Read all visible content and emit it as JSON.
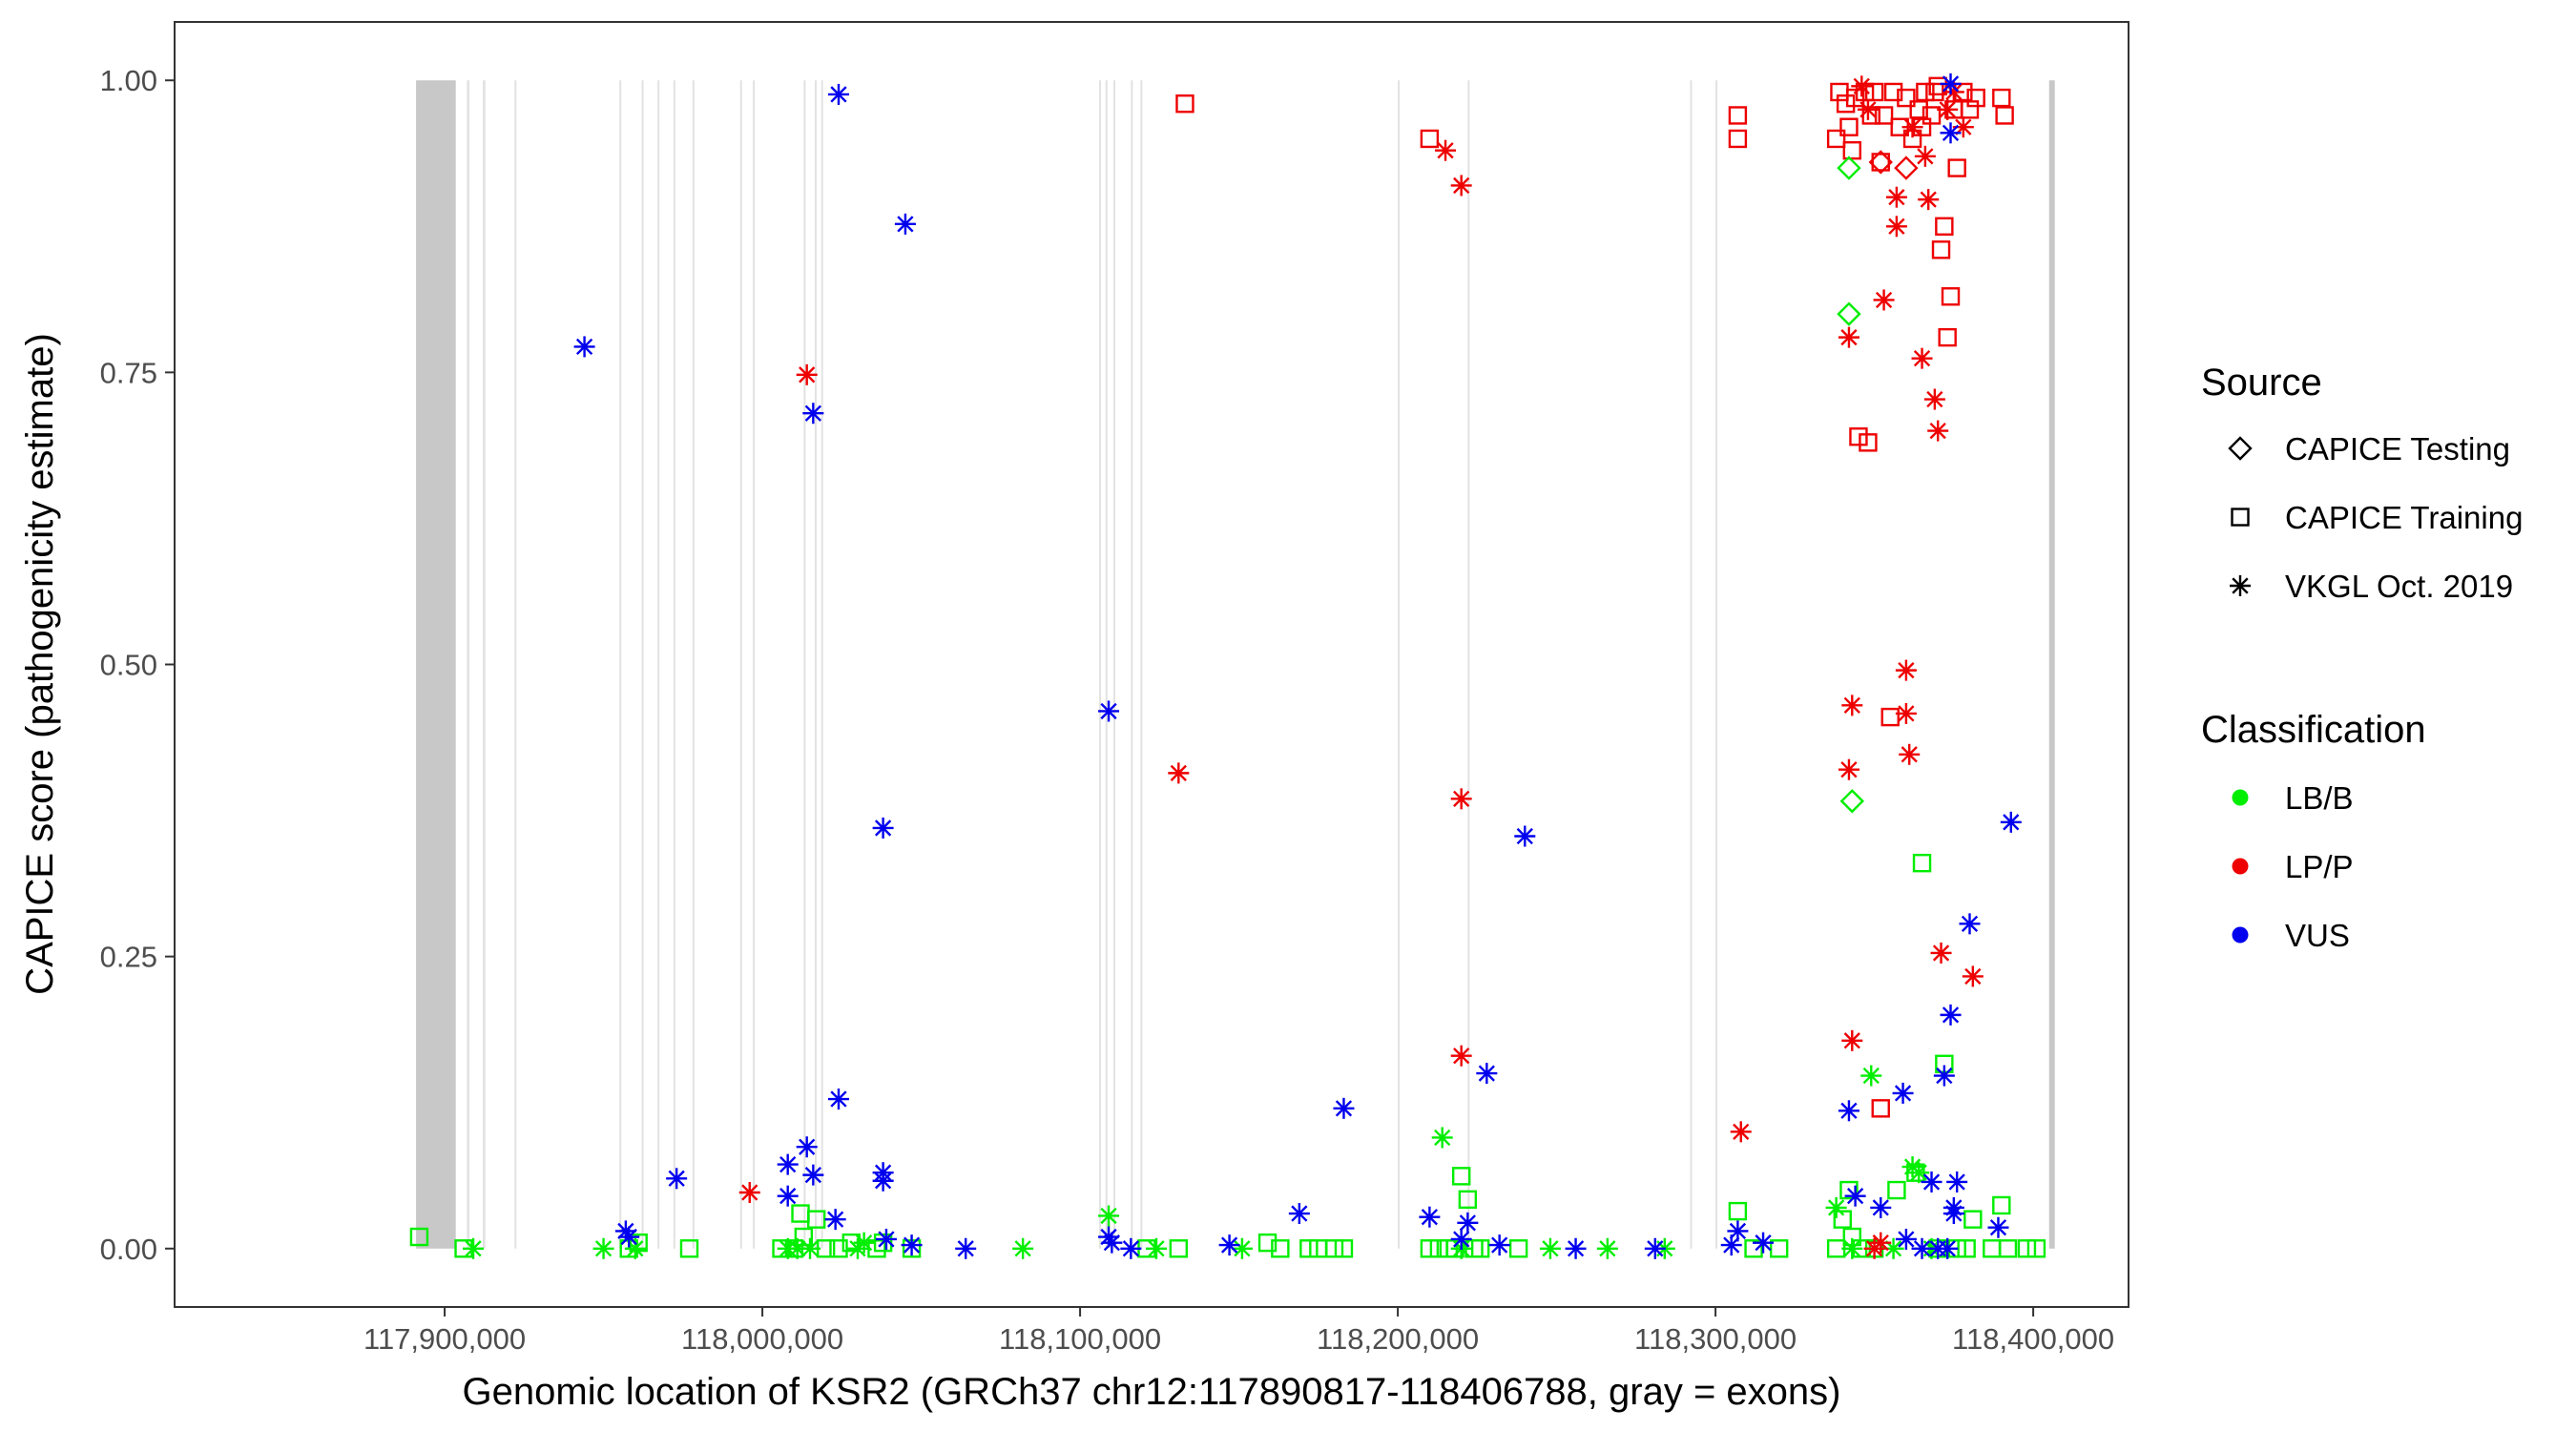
{
  "chart_data": {
    "type": "scatter",
    "title": "",
    "xlabel": "Genomic location of KSR2 (GRCh37 chr12:117890817-118406788, gray = exons)",
    "ylabel": "CAPICE score (pathogenicity estimate)",
    "xlim": [
      117815000,
      118430000
    ],
    "ylim": [
      -0.05,
      1.05
    ],
    "x_ticks": [
      117900000,
      118000000,
      118100000,
      118200000,
      118300000,
      118400000
    ],
    "x_tick_labels": [
      "117,900,000",
      "118,000,000",
      "118,100,000",
      "118,200,000",
      "118,300,000",
      "118,400,000"
    ],
    "y_ticks": [
      0,
      0.25,
      0.5,
      0.75,
      1
    ],
    "y_tick_labels": [
      "0.00",
      "0.25",
      "0.50",
      "0.75",
      "1.00"
    ],
    "exons": [
      [
        117891000,
        117903500
      ],
      [
        117907000,
        117907800
      ],
      [
        117912000,
        117912800
      ],
      [
        117922000,
        117922600
      ],
      [
        117955000,
        117955600
      ],
      [
        117962000,
        117962600
      ],
      [
        117967000,
        117967600
      ],
      [
        117972000,
        117972600
      ],
      [
        117978000,
        117978600
      ],
      [
        117993000,
        117993600
      ],
      [
        117997000,
        117997600
      ],
      [
        118013000,
        118013600
      ],
      [
        118016500,
        118017100
      ],
      [
        118018500,
        118019100
      ],
      [
        118106000,
        118106600
      ],
      [
        118108000,
        118108600
      ],
      [
        118110500,
        118111100
      ],
      [
        118116000,
        118116600
      ],
      [
        118119000,
        118119600
      ],
      [
        118200000,
        118200600
      ],
      [
        118222000,
        118222600
      ],
      [
        118292000,
        118292600
      ],
      [
        118300000,
        118300600
      ],
      [
        118405000,
        118406788
      ]
    ],
    "legends": {
      "source": {
        "title": "Source",
        "items": [
          {
            "shape": "diamond",
            "label": "CAPICE Testing"
          },
          {
            "shape": "square",
            "label": "CAPICE Training"
          },
          {
            "shape": "asterisk",
            "label": "VKGL Oct. 2019"
          }
        ]
      },
      "classification": {
        "title": "Classification",
        "items": [
          {
            "key": "LB",
            "label": "LB/B",
            "color": "#00ee00"
          },
          {
            "key": "LP",
            "label": "LP/P",
            "color": "#ee0000"
          },
          {
            "key": "VUS",
            "label": "VUS",
            "color": "#0000ee"
          }
        ]
      }
    },
    "series": [
      {
        "name": "CAPICE Training LB/B",
        "shape": "square",
        "class": "LB",
        "points": [
          [
            117892000,
            0.01
          ],
          [
            117906000,
            0.0
          ],
          [
            117958000,
            0.0
          ],
          [
            117961000,
            0.005
          ],
          [
            117977000,
            0.0
          ],
          [
            118006000,
            0.0
          ],
          [
            118010000,
            0.0
          ],
          [
            118012000,
            0.03
          ],
          [
            118013000,
            0.01
          ],
          [
            118017000,
            0.025
          ],
          [
            118020000,
            0.0
          ],
          [
            118024000,
            0.0
          ],
          [
            118028000,
            0.005
          ],
          [
            118036000,
            0.0
          ],
          [
            118038000,
            0.005
          ],
          [
            118047000,
            0.0
          ],
          [
            118121000,
            0.0
          ],
          [
            118131000,
            0.0
          ],
          [
            118159000,
            0.005
          ],
          [
            118163000,
            0.0
          ],
          [
            118172000,
            0.0
          ],
          [
            118175000,
            0.0
          ],
          [
            118180000,
            0.0
          ],
          [
            118183000,
            0.0
          ],
          [
            118210000,
            0.0
          ],
          [
            118213000,
            0.0
          ],
          [
            118216000,
            0.0
          ],
          [
            118218000,
            0.0
          ],
          [
            118220000,
            0.062
          ],
          [
            118222000,
            0.042
          ],
          [
            118224000,
            0.0
          ],
          [
            118226000,
            0.0
          ],
          [
            118238000,
            0.0
          ],
          [
            118307000,
            0.032
          ],
          [
            118312000,
            0.0
          ],
          [
            118320000,
            0.0
          ],
          [
            118338000,
            0.0
          ],
          [
            118340000,
            0.025
          ],
          [
            118342000,
            0.05
          ],
          [
            118343000,
            0.01
          ],
          [
            118346000,
            0.0
          ],
          [
            118350000,
            0.0
          ],
          [
            118357000,
            0.05
          ],
          [
            118363000,
            0.065
          ],
          [
            118365000,
            0.33
          ],
          [
            118370000,
            0.0
          ],
          [
            118372000,
            0.158
          ],
          [
            118376000,
            0.0
          ],
          [
            118379000,
            0.0
          ],
          [
            118381000,
            0.025
          ],
          [
            118387000,
            0.0
          ],
          [
            118390000,
            0.037
          ],
          [
            118392000,
            0.0
          ],
          [
            118398000,
            0.0
          ],
          [
            118401000,
            0.0
          ]
        ]
      },
      {
        "name": "CAPICE Training LP/P",
        "shape": "square",
        "class": "LP",
        "points": [
          [
            118133000,
            0.98
          ],
          [
            118210000,
            0.95
          ],
          [
            118307000,
            0.97
          ],
          [
            118307000,
            0.95
          ],
          [
            118338000,
            0.95
          ],
          [
            118339000,
            0.99
          ],
          [
            118341000,
            0.98
          ],
          [
            118342000,
            0.96
          ],
          [
            118343000,
            0.94
          ],
          [
            118344000,
            0.985
          ],
          [
            118345000,
            0.695
          ],
          [
            118347000,
            0.99
          ],
          [
            118348000,
            0.69
          ],
          [
            118349000,
            0.97
          ],
          [
            118350000,
            0.99
          ],
          [
            118352000,
            0.93
          ],
          [
            118353000,
            0.97
          ],
          [
            118355000,
            0.455
          ],
          [
            118356000,
            0.99
          ],
          [
            118358000,
            0.96
          ],
          [
            118360000,
            0.985
          ],
          [
            118362000,
            0.95
          ],
          [
            118364000,
            0.975
          ],
          [
            118365000,
            0.96
          ],
          [
            118366000,
            0.99
          ],
          [
            118368000,
            0.97
          ],
          [
            118369000,
            0.99
          ],
          [
            118370000,
            0.995
          ],
          [
            118371000,
            0.855
          ],
          [
            118372000,
            0.875
          ],
          [
            118373000,
            0.78
          ],
          [
            118374000,
            0.815
          ],
          [
            118375000,
            0.975
          ],
          [
            118376000,
            0.925
          ],
          [
            118378000,
            0.99
          ],
          [
            118380000,
            0.975
          ],
          [
            118382000,
            0.985
          ],
          [
            118390000,
            0.985
          ],
          [
            118391000,
            0.97
          ],
          [
            118352000,
            0.12
          ]
        ]
      },
      {
        "name": "CAPICE Testing LB/B",
        "shape": "diamond",
        "class": "LB",
        "points": [
          [
            118342000,
            0.8
          ],
          [
            118343000,
            0.383
          ],
          [
            118342000,
            0.925
          ]
        ]
      },
      {
        "name": "CAPICE Testing LP/P",
        "shape": "diamond",
        "class": "LP",
        "points": [
          [
            118352000,
            0.93
          ],
          [
            118360000,
            0.925
          ]
        ]
      },
      {
        "name": "VKGL LB/B",
        "shape": "asterisk",
        "class": "LB",
        "points": [
          [
            117909000,
            0.0
          ],
          [
            117950000,
            0.0
          ],
          [
            117960000,
            0.0
          ],
          [
            118008000,
            0.0
          ],
          [
            118011000,
            0.0
          ],
          [
            118015000,
            0.0
          ],
          [
            118030000,
            0.0
          ],
          [
            118032000,
            0.005
          ],
          [
            118082000,
            0.0
          ],
          [
            118109000,
            0.028
          ],
          [
            118124000,
            0.0
          ],
          [
            118151000,
            0.0
          ],
          [
            118214000,
            0.095
          ],
          [
            118220000,
            0.0
          ],
          [
            118248000,
            0.0
          ],
          [
            118266000,
            0.0
          ],
          [
            118284000,
            0.0
          ],
          [
            118338000,
            0.035
          ],
          [
            118343000,
            0.0
          ],
          [
            118349000,
            0.148
          ],
          [
            118356000,
            0.0
          ],
          [
            118362000,
            0.07
          ],
          [
            118364000,
            0.065
          ],
          [
            118368000,
            0.0
          ]
        ]
      },
      {
        "name": "VKGL LP/P",
        "shape": "asterisk",
        "class": "LP",
        "points": [
          [
            117996000,
            0.048
          ],
          [
            118014000,
            0.748
          ],
          [
            118131000,
            0.407
          ],
          [
            118215000,
            0.94
          ],
          [
            118220000,
            0.91
          ],
          [
            118220000,
            0.385
          ],
          [
            118220000,
            0.165
          ],
          [
            118308000,
            0.1
          ],
          [
            118342000,
            0.78
          ],
          [
            118343000,
            0.465
          ],
          [
            118342000,
            0.41
          ],
          [
            118343000,
            0.178
          ],
          [
            118346000,
            0.995
          ],
          [
            118348000,
            0.975
          ],
          [
            118350000,
            0.0
          ],
          [
            118353000,
            0.812
          ],
          [
            118357000,
            0.875
          ],
          [
            118357000,
            0.9
          ],
          [
            118360000,
            0.495
          ],
          [
            118360000,
            0.458
          ],
          [
            118361000,
            0.423
          ],
          [
            118362000,
            0.96
          ],
          [
            118365000,
            0.762
          ],
          [
            118366000,
            0.935
          ],
          [
            118367000,
            0.898
          ],
          [
            118369000,
            0.727
          ],
          [
            118370000,
            0.7
          ],
          [
            118371000,
            0.253
          ],
          [
            118373000,
            0.975
          ],
          [
            118375000,
            0.99
          ],
          [
            118378000,
            0.96
          ],
          [
            118381000,
            0.233
          ],
          [
            118352000,
            0.005
          ]
        ]
      },
      {
        "name": "VKGL VUS",
        "shape": "asterisk",
        "class": "VUS",
        "points": [
          [
            117944000,
            0.772
          ],
          [
            117957000,
            0.015
          ],
          [
            117958000,
            0.01
          ],
          [
            117973000,
            0.06
          ],
          [
            118008000,
            0.072
          ],
          [
            118008000,
            0.045
          ],
          [
            118014000,
            0.087
          ],
          [
            118016000,
            0.063
          ],
          [
            118016000,
            0.715
          ],
          [
            118024000,
            0.988
          ],
          [
            118024000,
            0.128
          ],
          [
            118023000,
            0.025
          ],
          [
            118038000,
            0.36
          ],
          [
            118038000,
            0.065
          ],
          [
            118038000,
            0.058
          ],
          [
            118039000,
            0.008
          ],
          [
            118045000,
            0.877
          ],
          [
            118047000,
            0.003
          ],
          [
            118064000,
            0.0
          ],
          [
            118109000,
            0.46
          ],
          [
            118109000,
            0.01
          ],
          [
            118110000,
            0.005
          ],
          [
            118116000,
            0.0
          ],
          [
            118147000,
            0.003
          ],
          [
            118169000,
            0.03
          ],
          [
            118183000,
            0.12
          ],
          [
            118210000,
            0.027
          ],
          [
            118220000,
            0.008
          ],
          [
            118222000,
            0.022
          ],
          [
            118228000,
            0.15
          ],
          [
            118232000,
            0.003
          ],
          [
            118240000,
            0.353
          ],
          [
            118256000,
            0.0
          ],
          [
            118281000,
            0.0
          ],
          [
            118305000,
            0.003
          ],
          [
            118307000,
            0.015
          ],
          [
            118315000,
            0.005
          ],
          [
            118342000,
            0.118
          ],
          [
            118344000,
            0.045
          ],
          [
            118352000,
            0.035
          ],
          [
            118359000,
            0.133
          ],
          [
            118360000,
            0.008
          ],
          [
            118365000,
            0.0
          ],
          [
            118368000,
            0.057
          ],
          [
            118370000,
            0.0
          ],
          [
            118372000,
            0.148
          ],
          [
            118373000,
            0.0
          ],
          [
            118374000,
            0.2
          ],
          [
            118375000,
            0.035
          ],
          [
            118375000,
            0.03
          ],
          [
            118376000,
            0.057
          ],
          [
            118380000,
            0.278
          ],
          [
            118374000,
            0.955
          ],
          [
            118374000,
            0.997
          ],
          [
            118389000,
            0.018
          ],
          [
            118393000,
            0.365
          ]
        ]
      }
    ]
  }
}
